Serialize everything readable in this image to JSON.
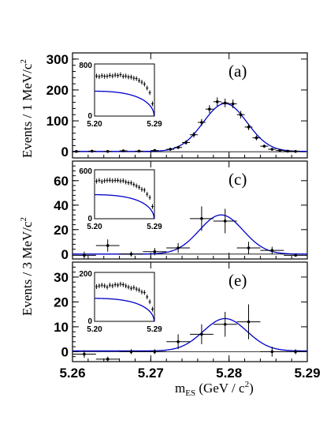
{
  "figure": {
    "ylabel_top": "Events / 1 MeV/c",
    "ylabel_bottom": "Events / 3 MeV/c",
    "ylabel_sup": "2",
    "xlabel_main": "m",
    "xlabel_sub": "ES",
    "xlabel_rest": " (GeV / c",
    "xlabel_sup": "2",
    "xlabel_close": ")"
  },
  "chart_data": [
    {
      "type": "scatter",
      "panel_label": "(a)",
      "xlim": [
        5.26,
        5.29
      ],
      "ylim": [
        -20,
        320
      ],
      "yticks": [
        "0",
        "100",
        "200",
        "300"
      ],
      "ytick_values": [
        0,
        100,
        200,
        300
      ],
      "fit": {
        "baseline": 1,
        "amp": 155,
        "mean": 5.2795,
        "sigma": 0.0028
      },
      "points": [
        {
          "x": 5.2605,
          "y": 1,
          "ex": 0.0005,
          "ey": 4
        },
        {
          "x": 5.2625,
          "y": 2,
          "ex": 0.0005,
          "ey": 4
        },
        {
          "x": 5.2645,
          "y": 1,
          "ex": 0.0005,
          "ey": 4
        },
        {
          "x": 5.2665,
          "y": 3,
          "ex": 0.0005,
          "ey": 4
        },
        {
          "x": 5.2685,
          "y": 2,
          "ex": 0.0005,
          "ey": 4
        },
        {
          "x": 5.2705,
          "y": 4,
          "ex": 0.0005,
          "ey": 4
        },
        {
          "x": 5.2725,
          "y": 8,
          "ex": 0.0005,
          "ey": 5
        },
        {
          "x": 5.2735,
          "y": 14,
          "ex": 0.0005,
          "ey": 5
        },
        {
          "x": 5.2745,
          "y": 30,
          "ex": 0.0005,
          "ey": 7
        },
        {
          "x": 5.2755,
          "y": 55,
          "ex": 0.0005,
          "ey": 9
        },
        {
          "x": 5.2765,
          "y": 95,
          "ex": 0.0005,
          "ey": 11
        },
        {
          "x": 5.2775,
          "y": 138,
          "ex": 0.0005,
          "ey": 13
        },
        {
          "x": 5.2785,
          "y": 162,
          "ex": 0.0005,
          "ey": 14
        },
        {
          "x": 5.2795,
          "y": 158,
          "ex": 0.0005,
          "ey": 14
        },
        {
          "x": 5.2805,
          "y": 155,
          "ex": 0.0005,
          "ey": 14
        },
        {
          "x": 5.2815,
          "y": 120,
          "ex": 0.0005,
          "ey": 12
        },
        {
          "x": 5.2825,
          "y": 80,
          "ex": 0.0005,
          "ey": 10
        },
        {
          "x": 5.2835,
          "y": 45,
          "ex": 0.0005,
          "ey": 8
        },
        {
          "x": 5.2845,
          "y": 18,
          "ex": 0.0005,
          "ey": 5
        },
        {
          "x": 5.2855,
          "y": 8,
          "ex": 0.0005,
          "ey": 4
        },
        {
          "x": 5.2865,
          "y": 4,
          "ex": 0.0005,
          "ey": 4
        },
        {
          "x": 5.2875,
          "y": 2,
          "ex": 0.0005,
          "ey": 4
        },
        {
          "x": 5.2885,
          "y": 1,
          "ex": 0.0005,
          "ey": 4
        }
      ],
      "inset": {
        "xlim": [
          5.2,
          5.29
        ],
        "ylim": [
          0,
          800
        ],
        "yticks": [
          "800",
          "0"
        ],
        "ytick_values": [
          800,
          0
        ],
        "xticks": [
          "5.20",
          "5.29"
        ],
        "xtick_values": [
          5.2,
          5.29
        ],
        "points": [
          [
            5.203,
            615
          ],
          [
            5.207,
            605
          ],
          [
            5.211,
            620
          ],
          [
            5.215,
            610
          ],
          [
            5.219,
            612
          ],
          [
            5.223,
            625
          ],
          [
            5.227,
            615
          ],
          [
            5.231,
            630
          ],
          [
            5.235,
            622
          ],
          [
            5.239,
            635
          ],
          [
            5.243,
            610
          ],
          [
            5.247,
            615
          ],
          [
            5.251,
            600
          ],
          [
            5.255,
            598
          ],
          [
            5.259,
            582
          ],
          [
            5.263,
            575
          ],
          [
            5.267,
            545
          ],
          [
            5.271,
            520
          ],
          [
            5.275,
            490
          ],
          [
            5.279,
            430
          ],
          [
            5.283,
            360
          ],
          [
            5.287,
            190
          ]
        ],
        "curve": {
          "a": 610,
          "e0": 5.2895,
          "c": 15
        }
      }
    },
    {
      "type": "scatter",
      "panel_label": "(c)",
      "xlim": [
        5.26,
        5.29
      ],
      "ylim": [
        -4,
        76
      ],
      "yticks": [
        "0",
        "20",
        "40",
        "60"
      ],
      "ytick_values": [
        0,
        20,
        40,
        60
      ],
      "fit": {
        "baseline": 0,
        "amp": 32,
        "mean": 5.279,
        "sigma": 0.0028
      },
      "points": [
        {
          "x": 5.2615,
          "y": -1,
          "ex": 0.0015,
          "ey": 3
        },
        {
          "x": 5.2645,
          "y": 7,
          "ex": 0.0015,
          "ey": 5
        },
        {
          "x": 5.2675,
          "y": 0,
          "ex": 0.0015,
          "ey": 2
        },
        {
          "x": 5.2705,
          "y": 2,
          "ex": 0.0015,
          "ey": 3
        },
        {
          "x": 5.2735,
          "y": 5,
          "ex": 0.0015,
          "ey": 4
        },
        {
          "x": 5.2765,
          "y": 29,
          "ex": 0.0015,
          "ey": 10
        },
        {
          "x": 5.2795,
          "y": 27,
          "ex": 0.0015,
          "ey": 10
        },
        {
          "x": 5.2825,
          "y": 5,
          "ex": 0.0015,
          "ey": 5
        },
        {
          "x": 5.2855,
          "y": 3,
          "ex": 0.0015,
          "ey": 3
        },
        {
          "x": 5.2885,
          "y": -1,
          "ex": 0.0015,
          "ey": 1
        }
      ],
      "inset": {
        "xlim": [
          5.2,
          5.29
        ],
        "ylim": [
          0,
          600
        ],
        "yticks": [
          "600",
          "0"
        ],
        "ytick_values": [
          600,
          0
        ],
        "xticks": [
          "5.20",
          "5.29"
        ],
        "xtick_values": [
          5.2,
          5.29
        ],
        "points": [
          [
            5.203,
            460
          ],
          [
            5.207,
            470
          ],
          [
            5.211,
            455
          ],
          [
            5.215,
            465
          ],
          [
            5.219,
            470
          ],
          [
            5.223,
            472
          ],
          [
            5.227,
            465
          ],
          [
            5.231,
            470
          ],
          [
            5.235,
            470
          ],
          [
            5.239,
            462
          ],
          [
            5.243,
            465
          ],
          [
            5.247,
            450
          ],
          [
            5.251,
            440
          ],
          [
            5.255,
            438
          ],
          [
            5.259,
            420
          ],
          [
            5.263,
            402
          ],
          [
            5.267,
            385
          ],
          [
            5.271,
            360
          ],
          [
            5.275,
            350
          ],
          [
            5.279,
            300
          ],
          [
            5.283,
            260
          ],
          [
            5.287,
            150
          ]
        ],
        "curve": {
          "a": 470,
          "e0": 5.2895,
          "c": 15
        }
      }
    },
    {
      "type": "scatter",
      "panel_label": "(e)",
      "xlim": [
        5.26,
        5.29
      ],
      "ylim": [
        -4,
        36
      ],
      "yticks": [
        "0",
        "10",
        "20",
        "30"
      ],
      "ytick_values": [
        0,
        10,
        20,
        30
      ],
      "fit": {
        "baseline": 0.3,
        "amp": 13,
        "mean": 5.2795,
        "sigma": 0.0028
      },
      "points": [
        {
          "x": 5.2615,
          "y": -1,
          "ex": 0.0015,
          "ey": 1.5
        },
        {
          "x": 5.2645,
          "y": -3,
          "ex": 0.0015,
          "ey": 1
        },
        {
          "x": 5.2675,
          "y": 0,
          "ex": 0.0015,
          "ey": 1
        },
        {
          "x": 5.2705,
          "y": 0,
          "ex": 0.0015,
          "ey": 1
        },
        {
          "x": 5.2735,
          "y": 4,
          "ex": 0.0015,
          "ey": 3
        },
        {
          "x": 5.2765,
          "y": 7,
          "ex": 0.0015,
          "ey": 4
        },
        {
          "x": 5.2795,
          "y": 11,
          "ex": 0.0015,
          "ey": 5
        },
        {
          "x": 5.2825,
          "y": 12,
          "ex": 0.0015,
          "ey": 7
        },
        {
          "x": 5.2855,
          "y": 0,
          "ex": 0.0015,
          "ey": 2
        },
        {
          "x": 5.2885,
          "y": 0,
          "ex": 0.0015,
          "ey": 1
        }
      ],
      "inset": {
        "xlim": [
          5.2,
          5.29
        ],
        "ylim": [
          0,
          200
        ],
        "yticks": [
          "200",
          "0"
        ],
        "ytick_values": [
          200,
          0
        ],
        "xticks": [
          "5.20",
          "5.29"
        ],
        "xtick_values": [
          5.2,
          5.29
        ],
        "points": [
          [
            5.203,
            142
          ],
          [
            5.207,
            145
          ],
          [
            5.211,
            148
          ],
          [
            5.215,
            145
          ],
          [
            5.219,
            140
          ],
          [
            5.223,
            148
          ],
          [
            5.227,
            145
          ],
          [
            5.231,
            150
          ],
          [
            5.235,
            148
          ],
          [
            5.239,
            152
          ],
          [
            5.243,
            150
          ],
          [
            5.247,
            145
          ],
          [
            5.251,
            140
          ],
          [
            5.255,
            135
          ],
          [
            5.259,
            138
          ],
          [
            5.263,
            132
          ],
          [
            5.267,
            128
          ],
          [
            5.271,
            120
          ],
          [
            5.275,
            118
          ],
          [
            5.279,
            100
          ],
          [
            5.283,
            80
          ],
          [
            5.287,
            50
          ]
        ],
        "curve": {
          "a": 150,
          "e0": 5.2895,
          "c": 15
        }
      }
    }
  ],
  "xaxis": {
    "ticks": [
      "5.26",
      "5.27",
      "5.28",
      "5.29"
    ],
    "tick_values": [
      5.26,
      5.27,
      5.28,
      5.29
    ]
  }
}
